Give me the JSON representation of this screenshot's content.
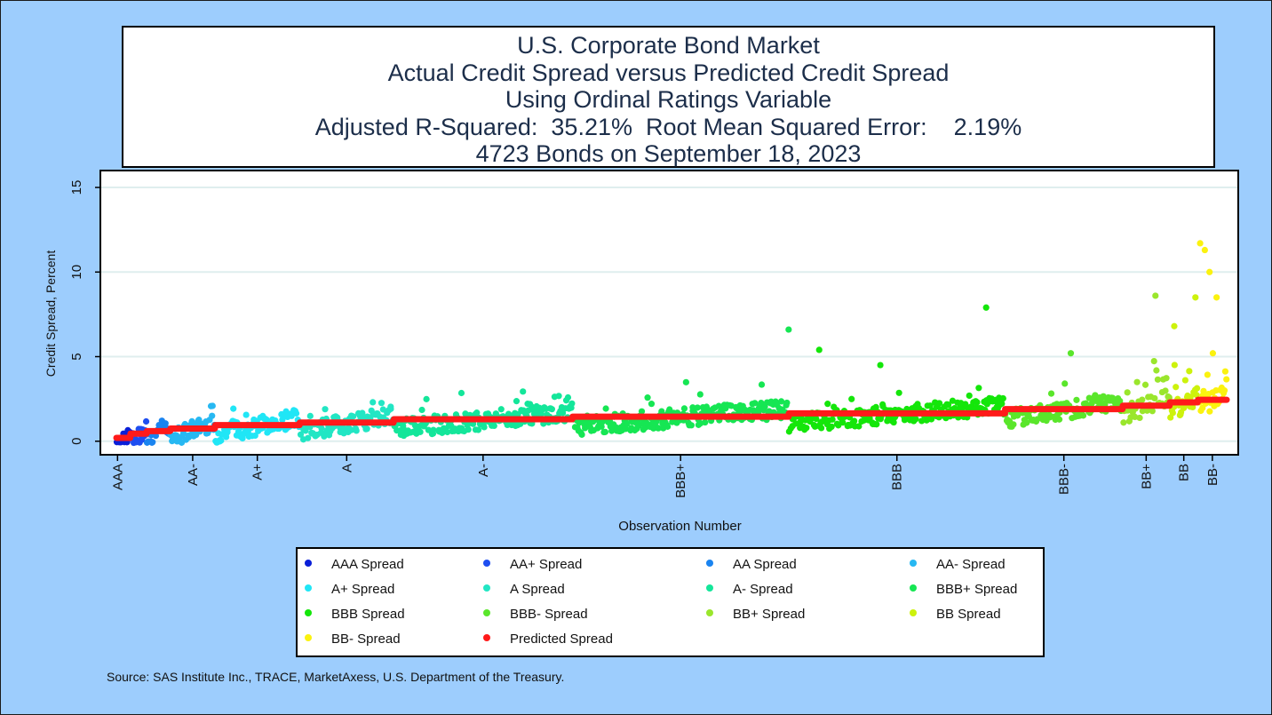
{
  "title_lines": [
    "U.S. Corporate Bond Market",
    "Actual Credit Spread versus Predicted Credit Spread",
    "Using Ordinal Ratings Variable",
    "Adjusted R-Squared:  35.21%  Root Mean Squared Error:    2.19%",
    "4723 Bonds on September 18, 2023"
  ],
  "source": "Source: SAS Institute Inc., TRACE, MarketAxess, U.S. Department of the Treasury.",
  "colors": {
    "background": "#9dcdfd",
    "predicted": "#ff1a1a",
    "gridline": "#dfeeee"
  },
  "chart_data": {
    "type": "scatter",
    "xlabel": "Observation Number",
    "ylabel": "Credit Spread, Percent",
    "xlim": [
      1,
      4723
    ],
    "ylim": [
      -0.8,
      16
    ],
    "yticks": [
      0,
      5,
      10,
      15
    ],
    "grid": "horizontal",
    "legend_position": "bottom",
    "categories": [
      {
        "rating": "AAA",
        "tick": "AAA",
        "start": 1,
        "end": 60,
        "predicted": 0.2,
        "color": "#0a1fd8"
      },
      {
        "rating": "AA+",
        "tick": "",
        "start": 61,
        "end": 130,
        "predicted": 0.45,
        "color": "#1e4ef0"
      },
      {
        "rating": "AA",
        "tick": "",
        "start": 131,
        "end": 230,
        "predicted": 0.6,
        "color": "#1a84f0"
      },
      {
        "rating": "AA-",
        "tick": "AA-",
        "start": 231,
        "end": 420,
        "predicted": 0.75,
        "color": "#27b8f2"
      },
      {
        "rating": "A+",
        "tick": "A+",
        "start": 421,
        "end": 780,
        "predicted": 0.95,
        "color": "#20e6f6"
      },
      {
        "rating": "A",
        "tick": "A",
        "start": 781,
        "end": 1180,
        "predicted": 1.1,
        "color": "#22e6c4"
      },
      {
        "rating": "A-",
        "tick": "A-",
        "start": 1181,
        "end": 1940,
        "predicted": 1.3,
        "color": "#14e69a"
      },
      {
        "rating": "BBB+",
        "tick": "BBB+",
        "start": 1941,
        "end": 2860,
        "predicted": 1.45,
        "color": "#16e653"
      },
      {
        "rating": "BBB",
        "tick": "BBB",
        "start": 2861,
        "end": 3780,
        "predicted": 1.65,
        "color": "#14e60a"
      },
      {
        "rating": "BBB-",
        "tick": "BBB-",
        "start": 3781,
        "end": 4280,
        "predicted": 1.9,
        "color": "#5ae62b"
      },
      {
        "rating": "BB+",
        "tick": "BB+",
        "start": 4281,
        "end": 4480,
        "predicted": 2.1,
        "color": "#9ae62c"
      },
      {
        "rating": "BB",
        "tick": "BB",
        "start": 4481,
        "end": 4600,
        "predicted": 2.3,
        "color": "#cdf20c"
      },
      {
        "rating": "BB-",
        "tick": "BB-",
        "start": 4601,
        "end": 4723,
        "predicted": 2.45,
        "color": "#fbf20f"
      }
    ],
    "legend": [
      {
        "label": "AAA Spread",
        "color": "#0a1fd8"
      },
      {
        "label": "AA+ Spread",
        "color": "#1e4ef0"
      },
      {
        "label": "AA Spread",
        "color": "#1a84f0"
      },
      {
        "label": "AA- Spread",
        "color": "#27b8f2"
      },
      {
        "label": "A+ Spread",
        "color": "#20e6f6"
      },
      {
        "label": "A Spread",
        "color": "#22e6c4"
      },
      {
        "label": "A- Spread",
        "color": "#14e69a"
      },
      {
        "label": "BBB+ Spread",
        "color": "#16e653"
      },
      {
        "label": "BBB Spread",
        "color": "#14e60a"
      },
      {
        "label": "BBB- Spread",
        "color": "#5ae62b"
      },
      {
        "label": "BB+ Spread",
        "color": "#9ae62c"
      },
      {
        "label": "BB Spread",
        "color": "#cdf20c"
      },
      {
        "label": "BB- Spread",
        "color": "#fbf20f"
      },
      {
        "label": "Predicted Spread",
        "color": "#ff1a1a"
      }
    ],
    "notable_points": [
      {
        "x": 2860,
        "y": 6.6
      },
      {
        "x": 2990,
        "y": 5.4
      },
      {
        "x": 3250,
        "y": 4.5
      },
      {
        "x": 3700,
        "y": 7.9
      },
      {
        "x": 4060,
        "y": 5.2
      },
      {
        "x": 4420,
        "y": 8.6
      },
      {
        "x": 4500,
        "y": 6.8
      },
      {
        "x": 4610,
        "y": 11.7
      },
      {
        "x": 4630,
        "y": 11.3
      },
      {
        "x": 4650,
        "y": 10.0
      },
      {
        "x": 4680,
        "y": 8.5
      },
      {
        "x": 4590,
        "y": 8.5
      }
    ]
  }
}
